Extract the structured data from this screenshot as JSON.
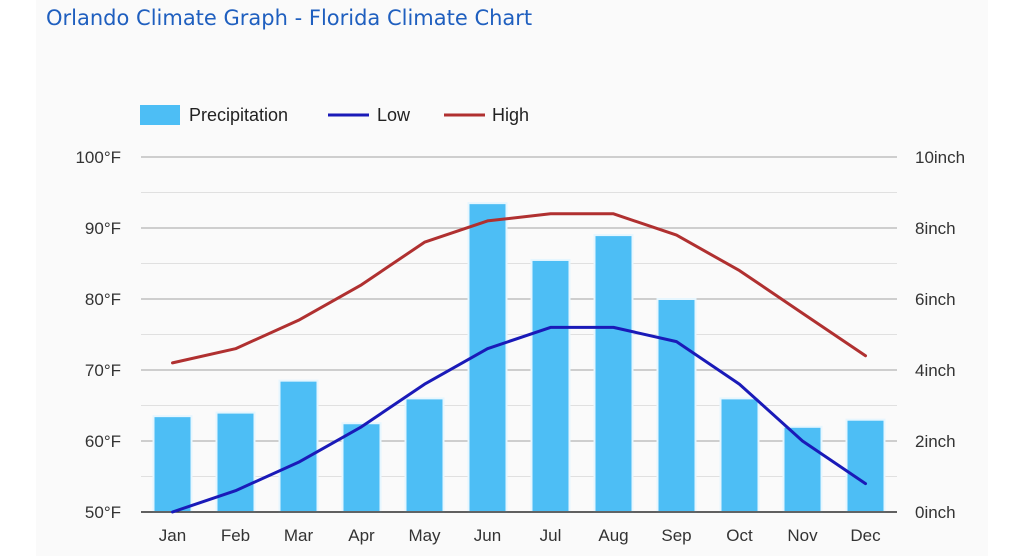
{
  "page": {
    "title": "Orlando Climate Graph - Florida Climate Chart"
  },
  "chart_data": {
    "type": "bar",
    "title": "Orlando Climate Graph - Florida Climate Chart",
    "categories": [
      "Jan",
      "Feb",
      "Mar",
      "Apr",
      "May",
      "Jun",
      "Jul",
      "Aug",
      "Sep",
      "Oct",
      "Nov",
      "Dec"
    ],
    "legend": [
      "Precipitation",
      "Low",
      "High"
    ],
    "legend_position": "top-left",
    "grid": true,
    "left_axis": {
      "unit_suffix": "°F",
      "range": [
        50,
        100
      ],
      "ticks": [
        "100°F",
        "90°F",
        "80°F",
        "70°F",
        "60°F",
        "50°F"
      ]
    },
    "right_axis": {
      "unit_suffix": "inch",
      "range": [
        0,
        10
      ],
      "ticks": [
        "10inch",
        "8inch",
        "6inch",
        "4inch",
        "2inch",
        "0inch"
      ]
    },
    "series": [
      {
        "name": "Precipitation",
        "kind": "bar",
        "axis": "right",
        "color": "#4dbef5",
        "values": [
          2.7,
          2.8,
          3.7,
          2.5,
          3.2,
          8.7,
          7.1,
          7.8,
          6.0,
          3.2,
          2.4,
          2.6
        ]
      },
      {
        "name": "Low",
        "kind": "line",
        "axis": "left",
        "color": "#1a1ab8",
        "values": [
          50,
          53,
          57,
          62,
          68,
          73,
          76,
          76,
          74,
          68,
          60,
          54
        ]
      },
      {
        "name": "High",
        "kind": "line",
        "axis": "left",
        "color": "#b03030",
        "values": [
          71,
          73,
          77,
          82,
          88,
          91,
          92,
          92,
          89,
          84,
          78,
          72
        ]
      }
    ]
  }
}
